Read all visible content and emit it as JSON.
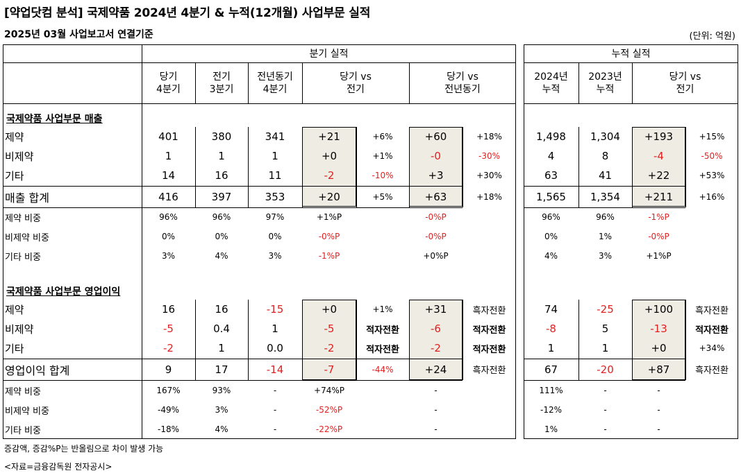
{
  "title": "[약업닷컴 분석] 국제약품 2024년 4분기 & 누적(12개월) 사업부문 실적",
  "subtitle": "2025년 03월 사업보고서 연결기준",
  "unit": "(단위: 억원)",
  "quarter_group": "분기 실적",
  "cum_group": "누적 실적",
  "quarter_headers": [
    "당기\n4분기",
    "전기\n3분기",
    "전년동기\n4분기",
    "당기 vs\n전기",
    "당기 vs\n전년동기"
  ],
  "cum_headers": [
    "2024년\n누적",
    "2023년\n누적",
    "당기 vs\n전기"
  ],
  "section1": "국제약품 사업부문 매출",
  "section2": "국제약품 사업부문 영업이익",
  "rows": [
    {
      "label": "제약",
      "q": [
        "401",
        "380",
        "341"
      ],
      "d1": "+21",
      "p1": "+6%",
      "d2": "+60",
      "p2": "+18%",
      "c": [
        "1,498",
        "1,304"
      ],
      "d3": "+193",
      "p3": "+15%"
    },
    {
      "label": "비제약",
      "q": [
        "1",
        "1",
        "1"
      ],
      "d1": "+0",
      "p1": "+1%",
      "d2": "-0",
      "p2": "-30%",
      "c": [
        "4",
        "8"
      ],
      "d3": "-4",
      "p3": "-50%"
    },
    {
      "label": "기타",
      "q": [
        "14",
        "16",
        "11"
      ],
      "d1": "-2",
      "p1": "-10%",
      "d2": "+3",
      "p2": "+30%",
      "c": [
        "63",
        "41"
      ],
      "d3": "+22",
      "p3": "+53%"
    },
    {
      "label": "매출 합계",
      "q": [
        "416",
        "397",
        "353"
      ],
      "d1": "+20",
      "p1": "+5%",
      "d2": "+63",
      "p2": "+18%",
      "c": [
        "1,565",
        "1,354"
      ],
      "d3": "+211",
      "p3": "+16%"
    },
    {
      "label": "제약 비중",
      "q": [
        "96%",
        "96%",
        "97%"
      ],
      "d1": "+1%P",
      "p1": "",
      "d2": "-0%P",
      "p2": "",
      "c": [
        "96%",
        "96%"
      ],
      "d3": "-1%P",
      "p3": ""
    },
    {
      "label": "비제약 비중",
      "q": [
        "0%",
        "0%",
        "0%"
      ],
      "d1": "-0%P",
      "p1": "",
      "d2": "-0%P",
      "p2": "",
      "c": [
        "0%",
        "1%"
      ],
      "d3": "-0%P",
      "p3": ""
    },
    {
      "label": "기타 비중",
      "q": [
        "3%",
        "4%",
        "3%"
      ],
      "d1": "-1%P",
      "p1": "",
      "d2": "+0%P",
      "p2": "",
      "c": [
        "4%",
        "3%"
      ],
      "d3": "+1%P",
      "p3": ""
    },
    {
      "label": "제약",
      "q": [
        "16",
        "16",
        "-15"
      ],
      "d1": "+0",
      "p1": "+1%",
      "d2": "+31",
      "p2": "흑자전환",
      "c": [
        "74",
        "-25"
      ],
      "d3": "+100",
      "p3": "흑자전환"
    },
    {
      "label": "비제약",
      "q": [
        "-5",
        "0.4",
        "1"
      ],
      "d1": "-5",
      "p1": "적자전환",
      "d2": "-6",
      "p2": "적자전환",
      "c": [
        "-8",
        "5"
      ],
      "d3": "-13",
      "p3": "적자전환"
    },
    {
      "label": "기타",
      "q": [
        "-2",
        "1",
        "0.0"
      ],
      "d1": "-2",
      "p1": "적자전환",
      "d2": "-2",
      "p2": "적자전환",
      "c": [
        "1",
        "1"
      ],
      "d3": "+0",
      "p3": "+34%"
    },
    {
      "label": "영업이익 합계",
      "q": [
        "9",
        "17",
        "-14"
      ],
      "d1": "-7",
      "p1": "-44%",
      "d2": "+24",
      "p2": "흑자전환",
      "c": [
        "67",
        "-20"
      ],
      "d3": "+87",
      "p3": "흑자전환"
    },
    {
      "label": "제약 비중",
      "q": [
        "167%",
        "93%",
        "-"
      ],
      "d1": "+74%P",
      "p1": "",
      "d2": "-",
      "p2": "",
      "c": [
        "111%",
        "-"
      ],
      "d3": "-",
      "p3": ""
    },
    {
      "label": "비제약 비중",
      "q": [
        "-49%",
        "3%",
        "-"
      ],
      "d1": "-52%P",
      "p1": "",
      "d2": "-",
      "p2": "",
      "c": [
        "-12%",
        "-"
      ],
      "d3": "-",
      "p3": ""
    },
    {
      "label": "기타 비중",
      "q": [
        "-18%",
        "4%",
        "-"
      ],
      "d1": "-22%P",
      "p1": "",
      "d2": "-",
      "p2": "",
      "c": [
        "1%",
        "-"
      ],
      "d3": "-",
      "p3": ""
    }
  ],
  "note1": "증감액, 증감%P는 반올림으로 차이 발생 가능",
  "note2": "<자료=금융감독원 전자공시>"
}
